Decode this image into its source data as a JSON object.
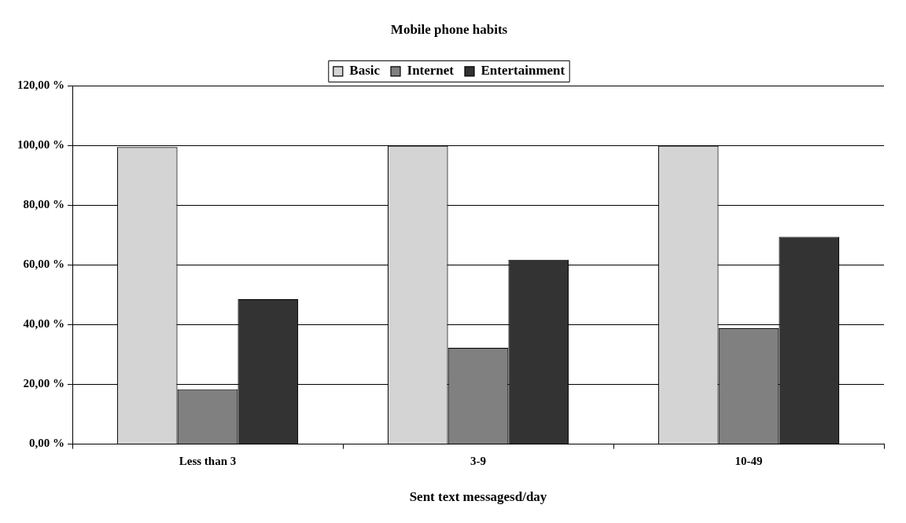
{
  "chart_data": {
    "type": "bar",
    "title": "Mobile phone habits",
    "xlabel": "Sent text messagesd/day",
    "categories": [
      "Less than 3",
      "3-9",
      "10-49"
    ],
    "series": [
      {
        "name": "Basic",
        "color": "#d4d4d4",
        "values": [
          99.5,
          100,
          100
        ]
      },
      {
        "name": "Internet",
        "color": "#808080",
        "values": [
          18.4,
          32.3,
          38.8
        ]
      },
      {
        "name": "Entertainment",
        "color": "#333333",
        "values": [
          48.6,
          61.8,
          69.5
        ]
      }
    ],
    "ylim": [
      0,
      120
    ],
    "yticks": [
      {
        "value": 0,
        "label": "0,00 %"
      },
      {
        "value": 20,
        "label": "20,00 %"
      },
      {
        "value": 40,
        "label": "40,00 %"
      },
      {
        "value": 60,
        "label": "60,00 %"
      },
      {
        "value": 80,
        "label": "80,00 %"
      },
      {
        "value": 100,
        "label": "100,00 %"
      },
      {
        "value": 120,
        "label": "120,00 %"
      }
    ],
    "grid": "y",
    "legend": "top"
  }
}
